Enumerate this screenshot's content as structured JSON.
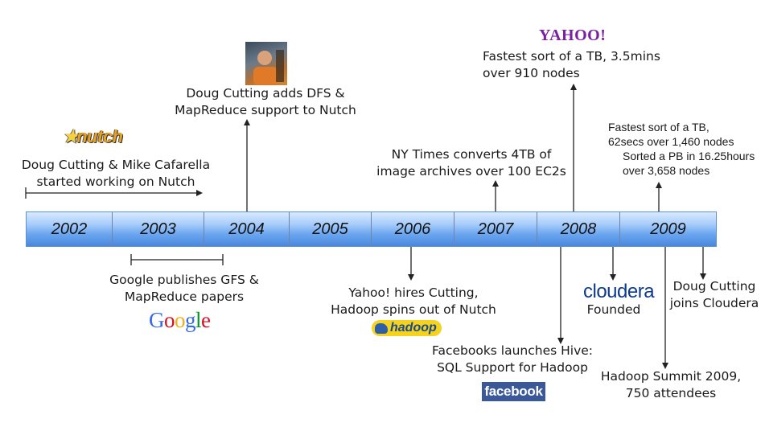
{
  "timeline": {
    "years": [
      "2002",
      "2003",
      "2004",
      "2005",
      "2006",
      "2007",
      "2008",
      "2009"
    ]
  },
  "events": {
    "nutch_start": {
      "line1": "Doug Cutting & Mike Cafarella",
      "line2": "started working on Nutch"
    },
    "gfs_papers": {
      "line1": "Google publishes GFS &",
      "line2": "MapReduce papers"
    },
    "dfs_nutch": {
      "line1": "Doug Cutting adds DFS &",
      "line2": "MapReduce support to Nutch"
    },
    "yahoo_hires": {
      "line1": "Yahoo! hires Cutting,",
      "line2": "Hadoop spins out of Nutch"
    },
    "nytimes": {
      "line1": "NY Times converts 4TB of",
      "line2": "image archives over 100 EC2s"
    },
    "yahoo_sort": {
      "line1": "Fastest sort of a TB, 3.5mins",
      "line2": "over 910 nodes"
    },
    "hive": {
      "line1": "Facebooks launches Hive:",
      "line2": "SQL Support for Hadoop"
    },
    "cloudera_founded": {
      "label": "Founded"
    },
    "sort_2009": {
      "line1": "Fastest sort of a TB,",
      "line2": "62secs over 1,460 nodes",
      "line3": "Sorted a PB in 16.25hours",
      "line4": "over 3,658 nodes"
    },
    "joins_cloudera": {
      "line1": "Doug Cutting",
      "line2": "joins Cloudera"
    },
    "summit": {
      "line1": "Hadoop Summit 2009,",
      "line2": "750 attendees"
    }
  },
  "logos": {
    "nutch": "nutch",
    "yahoo": "YAHOO!",
    "google": [
      "G",
      "o",
      "o",
      "g",
      "l",
      "e"
    ],
    "cloudera": "cloudera",
    "hadoop": "hadoop",
    "facebook": "facebook"
  },
  "colors": {
    "bar_top": "#d9eaff",
    "bar_bottom": "#4a88de",
    "yahoo": "#7b1fa2",
    "facebook": "#3b5998",
    "cloudera": "#0d3a8c",
    "google": [
      "#3369e8",
      "#d50f25",
      "#eeb211",
      "#3369e8",
      "#009925",
      "#d50f25"
    ]
  }
}
